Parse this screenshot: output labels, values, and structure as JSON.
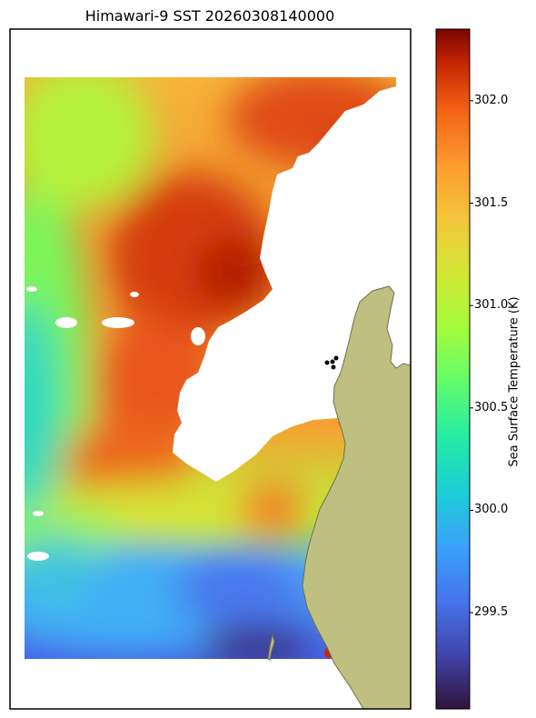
{
  "title": "Himawari-9 SST 20260308140000",
  "colorbar": {
    "label": "Sea Surface Temperature (K)",
    "ticks": [
      {
        "value": 302.0,
        "text": "302.0"
      },
      {
        "value": 301.5,
        "text": "301.5"
      },
      {
        "value": 301.0,
        "text": "301.0"
      },
      {
        "value": 300.5,
        "text": "300.5"
      },
      {
        "value": 300.0,
        "text": "300.0"
      },
      {
        "value": 299.5,
        "text": "299.5"
      }
    ],
    "min": 299.03,
    "max": 302.35,
    "colormap": "turbo"
  },
  "colors": {
    "land": "#bfbf82",
    "land_edge": "#6f6f50",
    "no_data": "#ffffff",
    "frame": "#000000"
  }
}
